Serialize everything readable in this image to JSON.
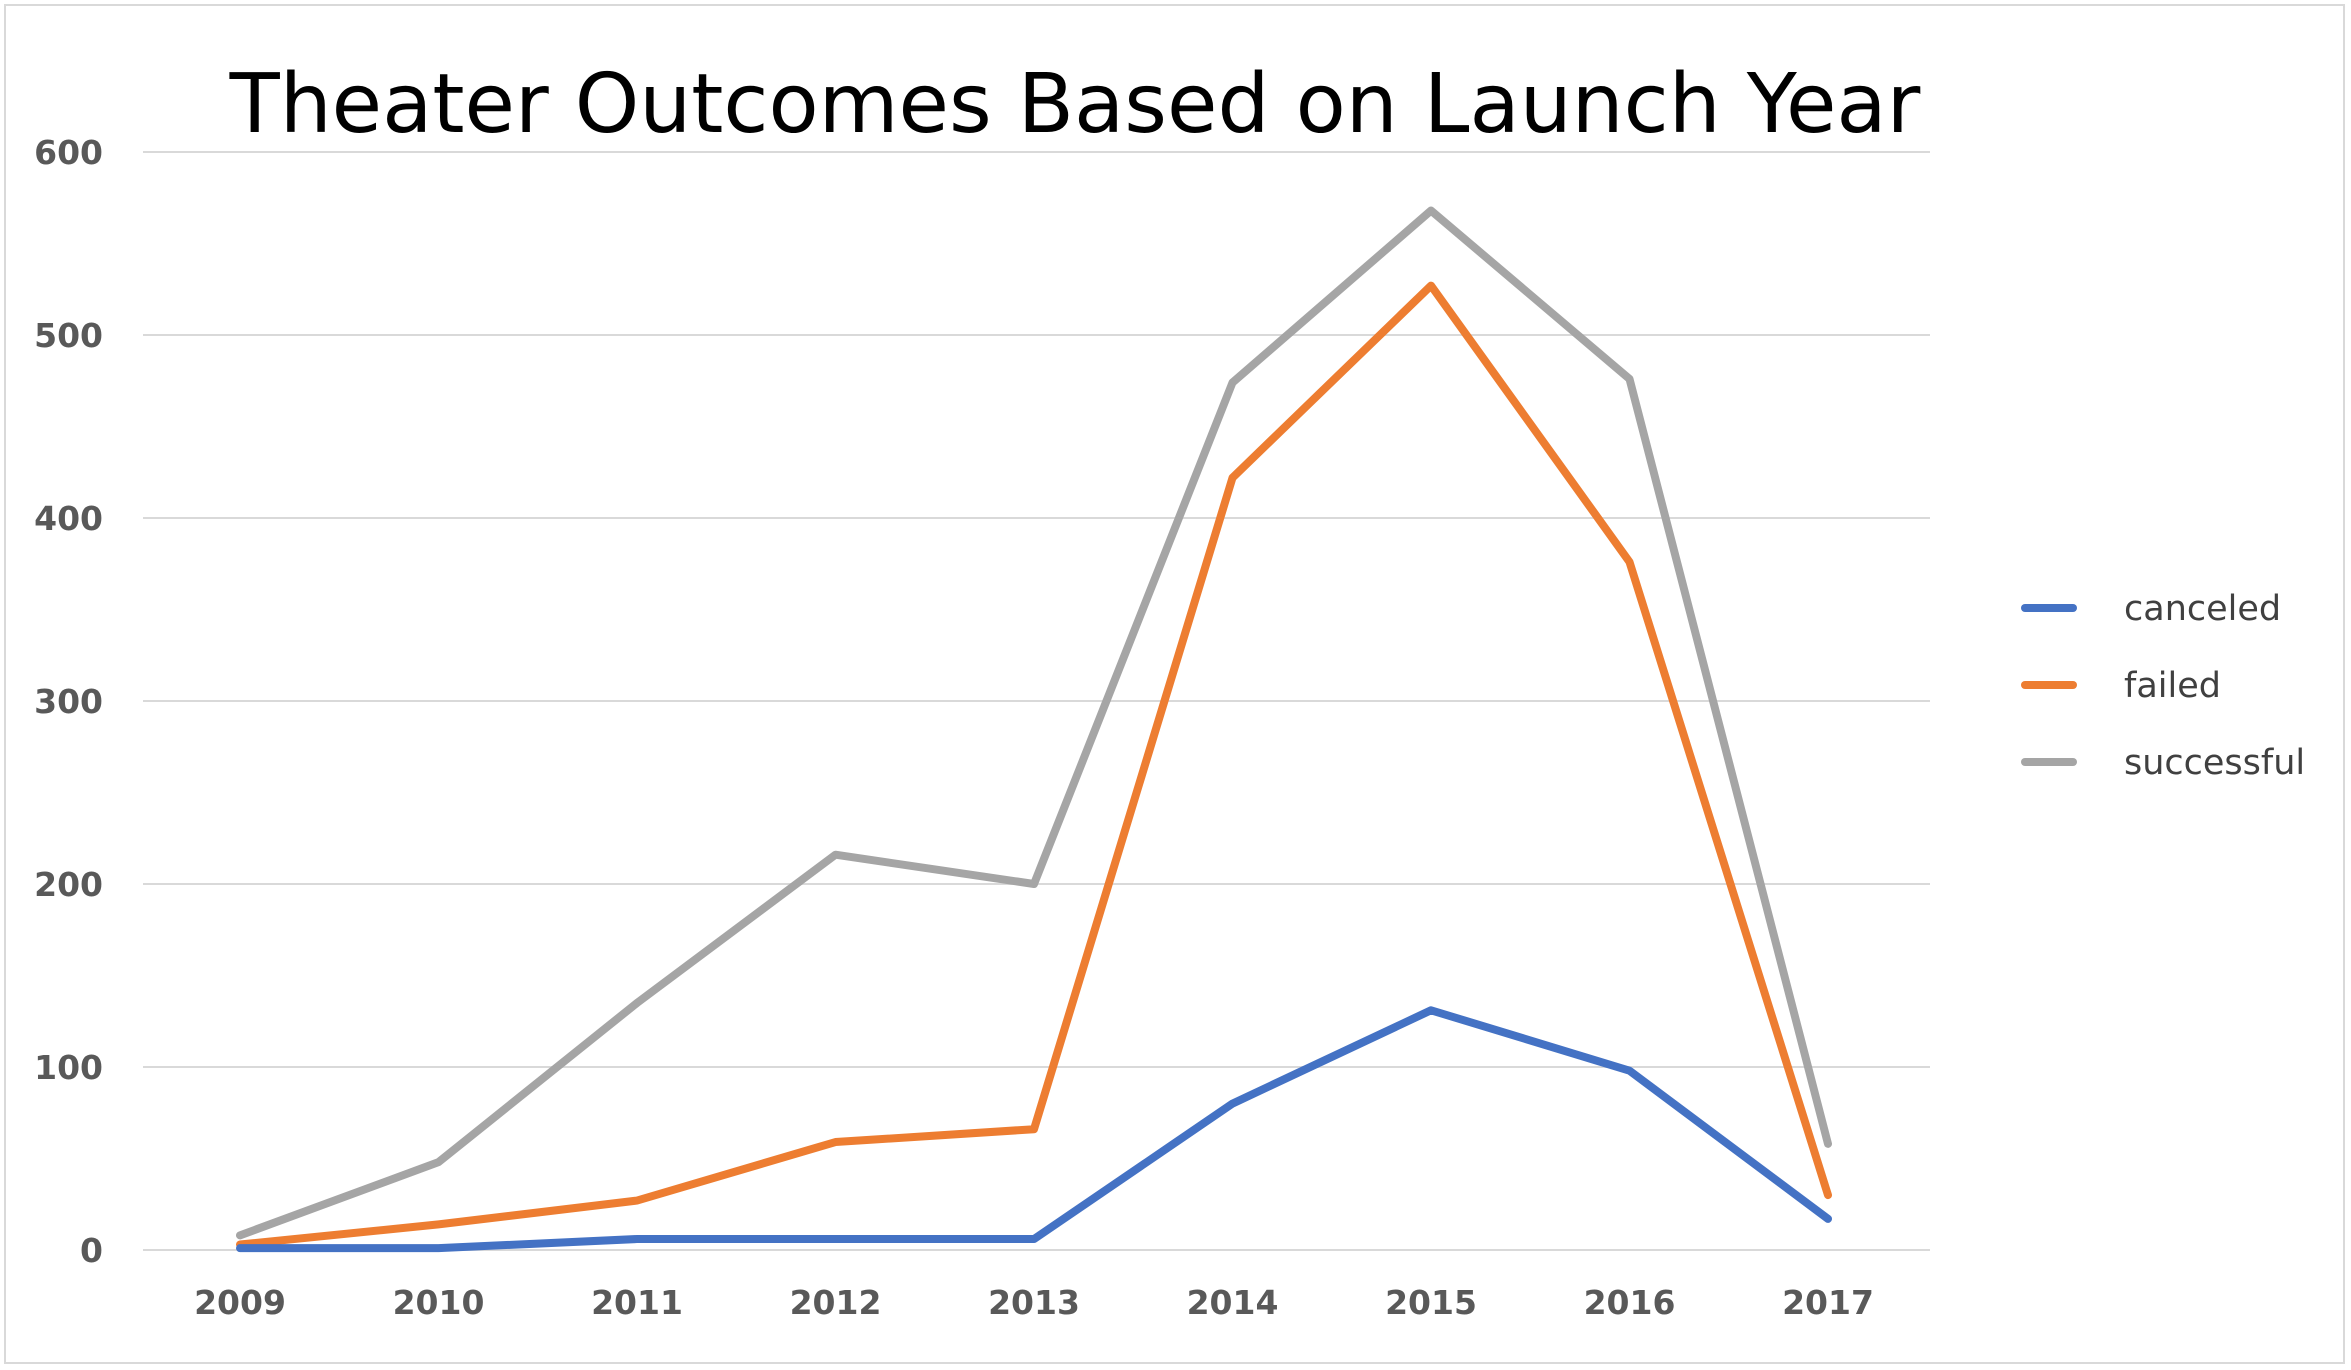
{
  "chart_data": {
    "type": "line",
    "title": "Theater Outcomes Based on Launch Year",
    "xlabel": "",
    "ylabel": "",
    "categories": [
      "2009",
      "2010",
      "2011",
      "2012",
      "2013",
      "2014",
      "2015",
      "2016",
      "2017"
    ],
    "ylim": [
      0,
      600
    ],
    "yticks": [
      0,
      100,
      200,
      300,
      400,
      500,
      600
    ],
    "grid": true,
    "legend": "right",
    "series": [
      {
        "name": "canceled",
        "color": "#4472C4",
        "values": [
          1,
          1,
          6,
          6,
          6,
          80,
          131,
          98,
          17
        ]
      },
      {
        "name": "failed",
        "color": "#ED7D31",
        "values": [
          3,
          14,
          27,
          59,
          66,
          422,
          527,
          376,
          30
        ]
      },
      {
        "name": "successful",
        "color": "#A5A5A5",
        "values": [
          8,
          48,
          135,
          216,
          200,
          474,
          568,
          476,
          58
        ]
      }
    ]
  }
}
